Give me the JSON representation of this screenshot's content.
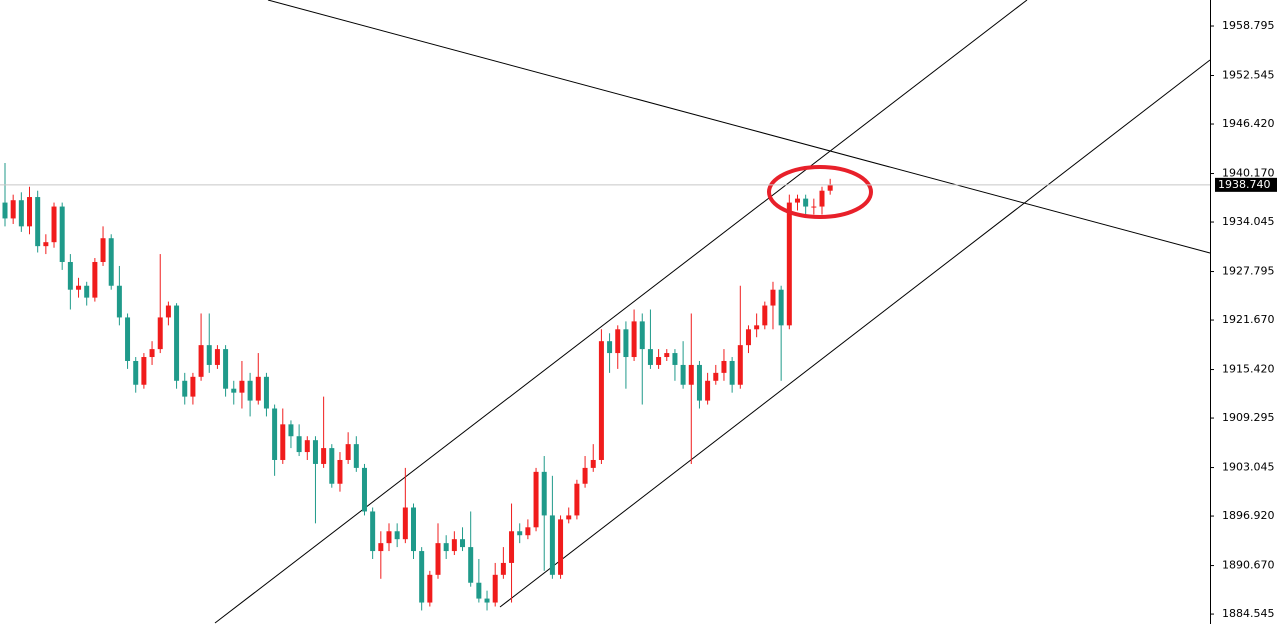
{
  "chart_data": {
    "type": "candlestick",
    "open": [
      1936.5,
      1934.5,
      1936.8,
      1933.5,
      1937.2,
      1931.0,
      1931.5,
      1936.0,
      1929.0,
      1925.5,
      1926.0,
      1924.5,
      1929.0,
      1932.0,
      1926.0,
      1922.0,
      1916.5,
      1913.5,
      1917.0,
      1918.0,
      1922.0,
      1923.5,
      1914.0,
      1912.0,
      1914.5,
      1918.5,
      1916.0,
      1918.0,
      1913.0,
      1912.5,
      1914.0,
      1911.5,
      1914.5,
      1910.5,
      1904.0,
      1908.5,
      1907.0,
      1905.0,
      1906.5,
      1903.5,
      1905.5,
      1901.0,
      1904.0,
      1906.0,
      1903.0,
      1897.5,
      1892.5,
      1893.5,
      1895.0,
      1894.0,
      1898.0,
      1892.5,
      1886.0,
      1889.5,
      1893.5,
      1892.5,
      1894.0,
      1893.0,
      1888.5,
      1886.5,
      1886.0,
      1889.5,
      1891.0,
      1895.0,
      1894.5,
      1895.5,
      1902.5,
      1897.0,
      1889.5,
      1896.5,
      1897.0,
      1901.0,
      1903.0,
      1904.0,
      1919.0,
      1917.5,
      1920.5,
      1917.0,
      1921.5,
      1918.0,
      1916.0,
      1917.0,
      1917.5,
      1916.0,
      1913.5,
      1916.0,
      1911.5,
      1914.0,
      1915.0,
      1916.5,
      1913.5,
      1918.5,
      1920.5,
      1921.0,
      1923.5,
      1925.5,
      1921.0,
      1936.5,
      1937.0,
      1936.0,
      1936.0,
      1938.0
    ],
    "high": [
      1941.5,
      1937.5,
      1937.8,
      1938.5,
      1938.0,
      1932.5,
      1936.5,
      1936.5,
      1930.0,
      1927.0,
      1926.5,
      1929.5,
      1933.5,
      1932.5,
      1928.5,
      1922.5,
      1917.0,
      1917.5,
      1919.0,
      1930.0,
      1924.0,
      1923.8,
      1915.0,
      1915.0,
      1922.5,
      1922.5,
      1918.5,
      1918.5,
      1914.0,
      1916.5,
      1915.0,
      1917.5,
      1915.0,
      1911.0,
      1910.5,
      1909.0,
      1908.5,
      1907.0,
      1907.0,
      1912.0,
      1906.0,
      1905.0,
      1907.5,
      1907.0,
      1903.5,
      1898.0,
      1895.0,
      1896.0,
      1896.0,
      1903.0,
      1898.5,
      1893.0,
      1890.0,
      1896.0,
      1894.5,
      1895.0,
      1895.5,
      1897.5,
      1891.5,
      1887.5,
      1891.0,
      1893.0,
      1898.5,
      1896.0,
      1896.5,
      1903.0,
      1904.5,
      1902.0,
      1897.0,
      1898.0,
      1901.5,
      1904.5,
      1906.0,
      1920.5,
      1920.0,
      1921.0,
      1921.5,
      1923.0,
      1922.5,
      1923.0,
      1918.0,
      1918.0,
      1918.0,
      1919.0,
      1922.5,
      1916.5,
      1915.0,
      1916.0,
      1918.0,
      1917.0,
      1926.0,
      1921.0,
      1922.5,
      1924.0,
      1926.5,
      1926.0,
      1937.5,
      1937.5,
      1937.5,
      1937.0,
      1938.5,
      1939.5
    ],
    "low": [
      1933.5,
      1933.8,
      1932.8,
      1932.5,
      1930.2,
      1930.0,
      1930.8,
      1928.0,
      1923.0,
      1924.5,
      1923.5,
      1924.0,
      1928.5,
      1925.5,
      1921.0,
      1915.5,
      1912.5,
      1913.0,
      1916.0,
      1917.5,
      1921.0,
      1913.0,
      1911.0,
      1911.0,
      1914.0,
      1915.0,
      1915.5,
      1912.0,
      1911.0,
      1910.5,
      1909.5,
      1911.0,
      1909.5,
      1902.0,
      1903.5,
      1905.5,
      1904.5,
      1904.0,
      1896.0,
      1903.0,
      1900.5,
      1900.0,
      1903.5,
      1902.5,
      1897.0,
      1891.5,
      1889.0,
      1892.5,
      1893.0,
      1893.5,
      1891.5,
      1885.0,
      1885.5,
      1889.0,
      1891.5,
      1892.0,
      1892.5,
      1888.0,
      1886.0,
      1885.0,
      1885.5,
      1889.0,
      1886.0,
      1893.5,
      1894.0,
      1895.0,
      1890.0,
      1889.0,
      1889.0,
      1896.0,
      1896.5,
      1900.5,
      1902.5,
      1903.5,
      1915.0,
      1915.5,
      1913.0,
      1916.5,
      1911.0,
      1915.5,
      1915.5,
      1916.5,
      1914.0,
      1913.0,
      1903.5,
      1910.5,
      1911.0,
      1913.5,
      1914.0,
      1912.5,
      1913.0,
      1917.5,
      1919.5,
      1920.5,
      1920.5,
      1914.0,
      1920.5,
      1935.5,
      1935.0,
      1935.0,
      1935.0,
      1937.5
    ],
    "close": [
      1934.5,
      1936.8,
      1933.5,
      1937.2,
      1931.0,
      1931.5,
      1936.0,
      1929.0,
      1925.5,
      1926.0,
      1924.5,
      1929.0,
      1932.0,
      1926.0,
      1922.0,
      1916.5,
      1913.5,
      1917.0,
      1918.0,
      1922.0,
      1923.5,
      1914.0,
      1912.0,
      1914.5,
      1918.5,
      1916.0,
      1918.0,
      1913.0,
      1912.5,
      1914.0,
      1911.5,
      1914.5,
      1910.5,
      1904.0,
      1908.5,
      1907.0,
      1905.0,
      1906.5,
      1903.5,
      1905.5,
      1901.0,
      1904.0,
      1906.0,
      1903.0,
      1897.5,
      1892.5,
      1893.5,
      1895.0,
      1894.0,
      1898.0,
      1892.5,
      1886.0,
      1889.5,
      1893.5,
      1892.5,
      1894.0,
      1893.0,
      1888.5,
      1886.5,
      1886.0,
      1889.5,
      1891.0,
      1895.0,
      1894.5,
      1895.5,
      1902.5,
      1897.0,
      1889.5,
      1896.5,
      1897.0,
      1901.0,
      1903.0,
      1904.0,
      1919.0,
      1917.5,
      1920.5,
      1917.0,
      1921.5,
      1918.0,
      1916.0,
      1917.0,
      1917.5,
      1916.0,
      1913.5,
      1916.0,
      1911.5,
      1914.0,
      1915.0,
      1916.5,
      1913.5,
      1918.5,
      1920.5,
      1921.0,
      1923.5,
      1925.5,
      1921.0,
      1936.5,
      1937.0,
      1936.0,
      1936.0,
      1938.0,
      1938.7
    ],
    "up_color": "#f01c1c",
    "down_color": "#1f9a8a",
    "ylim": [
      1883.29,
      1962.08
    ],
    "yticks": [
      {
        "value": 1958.795,
        "label": "1958.795"
      },
      {
        "value": 1952.545,
        "label": "1952.545"
      },
      {
        "value": 1946.42,
        "label": "1946.420"
      },
      {
        "value": 1940.17,
        "label": "1940.170"
      },
      {
        "value": 1934.045,
        "label": "1934.045"
      },
      {
        "value": 1927.795,
        "label": "1927.795"
      },
      {
        "value": 1921.67,
        "label": "1921.670"
      },
      {
        "value": 1915.42,
        "label": "1915.420"
      },
      {
        "value": 1909.295,
        "label": "1909.295"
      },
      {
        "value": 1903.045,
        "label": "1903.045"
      },
      {
        "value": 1896.92,
        "label": "1896.920"
      },
      {
        "value": 1890.67,
        "label": "1890.670"
      },
      {
        "value": 1884.545,
        "label": "1884.545"
      }
    ],
    "last_price": {
      "value": 1938.74,
      "label": "1938.740"
    }
  }
}
